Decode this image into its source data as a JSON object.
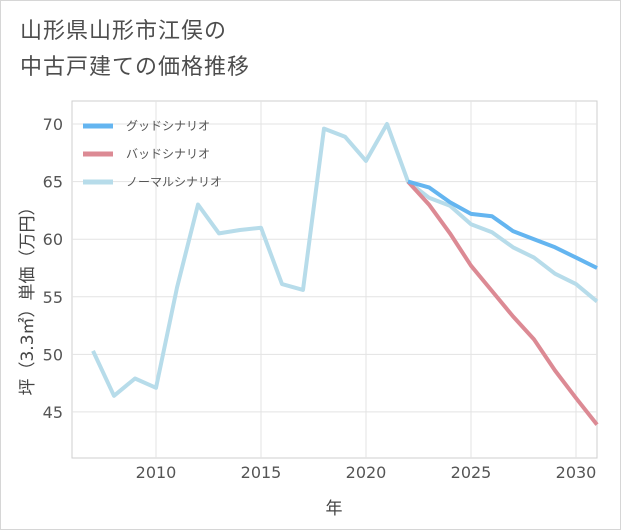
{
  "chart_data": {
    "type": "line",
    "title": "山形県山形市江俣の中古戸建ての価格推移",
    "title_lines": [
      "山形県山形市江俣の",
      "中古戸建ての価格推移"
    ],
    "xlabel": "年",
    "ylabel": "坪（3.3㎡）単価（万円）",
    "xlim": [
      2006,
      2031
    ],
    "ylim": [
      41,
      72
    ],
    "x_ticks": [
      2010,
      2015,
      2020,
      2025,
      2030
    ],
    "y_ticks": [
      45,
      50,
      55,
      60,
      65,
      70
    ],
    "grid": true,
    "legend_position": "top-left",
    "series": [
      {
        "name": "グッドシナリオ",
        "color": "#64b5f0",
        "x": [
          2022,
          2023,
          2024,
          2025,
          2026,
          2027,
          2028,
          2029,
          2030,
          2031
        ],
        "values": [
          65.0,
          64.5,
          63.2,
          62.2,
          62.0,
          60.7,
          60.0,
          59.3,
          58.4,
          57.5
        ]
      },
      {
        "name": "バッドシナリオ",
        "color": "#dc8a94",
        "x": [
          2022,
          2023,
          2024,
          2025,
          2026,
          2027,
          2028,
          2029,
          2030,
          2031
        ],
        "values": [
          65.0,
          63.0,
          60.5,
          57.7,
          55.5,
          53.3,
          51.3,
          48.6,
          46.2,
          43.9
        ]
      },
      {
        "name": "ノーマルシナリオ",
        "color": "#b7dcea",
        "x": [
          2007,
          2008,
          2009,
          2010,
          2011,
          2012,
          2013,
          2014,
          2015,
          2016,
          2017,
          2018,
          2019,
          2020,
          2021,
          2022,
          2023,
          2024,
          2025,
          2026,
          2027,
          2028,
          2029,
          2030,
          2031
        ],
        "values": [
          50.3,
          46.4,
          47.9,
          47.1,
          55.8,
          63.0,
          60.5,
          60.8,
          61.0,
          56.1,
          55.6,
          69.6,
          68.9,
          66.8,
          70.0,
          65.0,
          63.6,
          62.9,
          61.3,
          60.6,
          59.3,
          58.4,
          57.0,
          56.1,
          54.6
        ]
      }
    ]
  }
}
